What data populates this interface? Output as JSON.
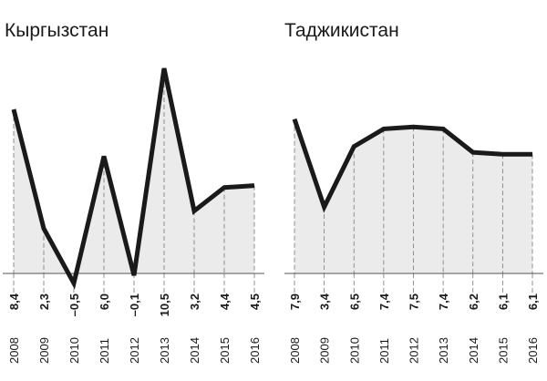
{
  "chart_data": [
    {
      "type": "line",
      "title": "Кыргызстан",
      "categories": [
        "2008",
        "2009",
        "2010",
        "2011",
        "2012",
        "2013",
        "2014",
        "2015",
        "2016"
      ],
      "values": [
        8.4,
        2.3,
        -0.5,
        6.0,
        -0.1,
        10.5,
        3.2,
        4.4,
        4.5
      ],
      "value_labels": [
        "8,4",
        "2,3",
        "–0,5",
        "6,0",
        "–0,1",
        "10,5",
        "3,2",
        "4,4",
        "4,5"
      ],
      "color": "#1a1a1a"
    },
    {
      "type": "line",
      "title": "Таджикистан",
      "categories": [
        "2008",
        "2009",
        "2010",
        "2011",
        "2012",
        "2013",
        "2014",
        "2015",
        "2016"
      ],
      "values": [
        7.9,
        3.4,
        6.5,
        7.4,
        7.5,
        7.4,
        6.2,
        6.1,
        6.1
      ],
      "value_labels": [
        "7,9",
        "3,4",
        "6,5",
        "7,4",
        "7,5",
        "7,4",
        "6,2",
        "6,1",
        "6,1"
      ],
      "color": "#1a1a1a"
    }
  ]
}
